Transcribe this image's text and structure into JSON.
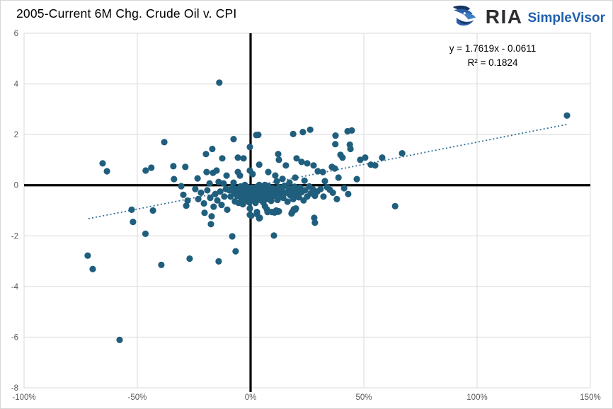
{
  "header": {
    "title": "2005-Current 6M Chg. Crude Oil v. CPI",
    "logo": {
      "brand": "RIA",
      "product": "SimpleVisor",
      "icon": "eagle-icon"
    }
  },
  "chart_data": {
    "type": "scatter",
    "title": "2005-Current 6M Chg. Crude Oil v. CPI",
    "xlabel": "",
    "ylabel": "",
    "xlim": [
      -100,
      150
    ],
    "ylim": [
      -8,
      6
    ],
    "grid": true,
    "x_ticks": [
      {
        "value": -100,
        "label": "-100%"
      },
      {
        "value": -50,
        "label": "-50%"
      },
      {
        "value": 0,
        "label": "0%"
      },
      {
        "value": 50,
        "label": "50%"
      },
      {
        "value": 100,
        "label": "100%"
      },
      {
        "value": 150,
        "label": "150%"
      }
    ],
    "y_ticks": [
      {
        "value": 6,
        "label": "6"
      },
      {
        "value": 4,
        "label": "4"
      },
      {
        "value": 2,
        "label": "2"
      },
      {
        "value": 0,
        "label": "0"
      },
      {
        "value": -2,
        "label": "-2"
      },
      {
        "value": -4,
        "label": "-4"
      },
      {
        "value": -6,
        "label": "-6"
      },
      {
        "value": -8,
        "label": "-8"
      }
    ],
    "annotation": {
      "equation": "y = 1.7619x - 0.0611",
      "r_squared": "R² = 0.1824"
    },
    "trendline": {
      "slope": 1.7619,
      "intercept": -0.0611,
      "x_start_pct": -71.6,
      "x_end_pct": 140,
      "style": "dotted"
    },
    "colors": {
      "point": "#205E7D",
      "trend": "#2F7196",
      "grid": "#D9D9D9",
      "border": "#D9D9D9",
      "zero_axis": "#000000",
      "tick_label": "#595959",
      "title": "#000000",
      "logo_brand": "#2B2D30",
      "logo_product": "#1F5FAD"
    },
    "point_radius": 4.6,
    "points": [
      [
        -65.3,
        0.86
      ],
      [
        -63.4,
        0.55
      ],
      [
        -71.9,
        -2.78
      ],
      [
        -69.7,
        -3.31
      ],
      [
        -57.8,
        -6.11
      ],
      [
        -52.5,
        -0.97
      ],
      [
        -51.9,
        -1.45
      ],
      [
        -46.4,
        -1.92
      ],
      [
        -43.1,
        -1.0
      ],
      [
        -39.4,
        -3.15
      ],
      [
        -26.9,
        -2.9
      ],
      [
        -38.1,
        1.7
      ],
      [
        -46.3,
        0.58
      ],
      [
        -43.8,
        0.69
      ],
      [
        -34.1,
        0.75
      ],
      [
        -28.8,
        0.72
      ],
      [
        -33.8,
        0.24
      ],
      [
        -30.6,
        -0.04
      ],
      [
        -29.7,
        -0.38
      ],
      [
        -27.8,
        -0.61
      ],
      [
        -28.4,
        -0.81
      ],
      [
        -14.1,
        -3.01
      ],
      [
        -6.6,
        -2.61
      ],
      [
        -8.1,
        -2.02
      ],
      [
        -13.8,
        4.05
      ],
      [
        -16.9,
        1.43
      ],
      [
        -7.5,
        1.82
      ],
      [
        -0.3,
        1.51
      ],
      [
        2.5,
        1.98
      ],
      [
        18.8,
        2.02
      ],
      [
        23.1,
        2.1
      ],
      [
        26.3,
        2.19
      ],
      [
        37.5,
        1.96
      ],
      [
        42.8,
        2.13
      ],
      [
        44.7,
        2.16
      ],
      [
        37.4,
        1.62
      ],
      [
        43.8,
        1.6
      ],
      [
        39.7,
        1.2
      ],
      [
        40.6,
        1.09
      ],
      [
        44.1,
        1.43
      ],
      [
        48.4,
        1.0
      ],
      [
        50.6,
        1.09
      ],
      [
        58.1,
        1.09
      ],
      [
        53.1,
        0.81
      ],
      [
        55.0,
        0.78
      ],
      [
        66.9,
        1.26
      ],
      [
        139.7,
        2.75
      ],
      [
        63.8,
        -0.83
      ],
      [
        28.4,
        -1.48
      ],
      [
        10.3,
        -1.99
      ],
      [
        19.7,
        -0.97
      ],
      [
        28.1,
        -1.29
      ],
      [
        -20.3,
        -1.09
      ],
      [
        -17.2,
        -1.23
      ],
      [
        -17.5,
        -1.54
      ],
      [
        -10.3,
        -0.97
      ],
      [
        -0.3,
        -1.17
      ],
      [
        2.8,
        -1.06
      ],
      [
        3.8,
        -1.31
      ],
      [
        7.5,
        -1.06
      ],
      [
        10.6,
        -1.08
      ],
      [
        12.2,
        -1.05
      ],
      [
        18.4,
        -1.06
      ],
      [
        -19.7,
        1.23
      ],
      [
        -12.5,
        1.06
      ],
      [
        -5.6,
        1.09
      ],
      [
        -3.1,
        1.06
      ],
      [
        12.2,
        1.23
      ],
      [
        12.5,
        1.0
      ],
      [
        3.4,
        1.99
      ],
      [
        3.8,
        0.81
      ],
      [
        15.6,
        0.78
      ],
      [
        20.3,
        1.06
      ],
      [
        22.5,
        0.92
      ],
      [
        25.0,
        0.86
      ],
      [
        27.8,
        0.78
      ],
      [
        29.7,
        0.55
      ],
      [
        31.9,
        0.52
      ],
      [
        35.9,
        0.72
      ],
      [
        37.2,
        0.66
      ],
      [
        38.8,
        0.3
      ],
      [
        32.8,
        0.16
      ],
      [
        46.9,
        0.24
      ],
      [
        35.0,
        -0.18
      ],
      [
        -19.4,
        0.52
      ],
      [
        -16.6,
        0.49
      ],
      [
        -15.0,
        0.58
      ],
      [
        -10.6,
        0.38
      ],
      [
        -5.6,
        0.52
      ],
      [
        -4.7,
        0.38
      ],
      [
        -0.3,
        0.58
      ],
      [
        0.9,
        0.44
      ],
      [
        7.8,
        0.52
      ],
      [
        10.9,
        0.38
      ],
      [
        -23.4,
        0.27
      ],
      [
        -18.1,
        0.07
      ],
      [
        -14.1,
        0.13
      ],
      [
        -11.9,
        0.07
      ],
      [
        -7.5,
        0.1
      ],
      [
        -2.5,
        0.01
      ],
      [
        1.6,
        -0.13
      ],
      [
        3.8,
        0.01
      ],
      [
        6.3,
        0.01
      ],
      [
        10.9,
        -0.18
      ],
      [
        -0.3,
        -0.92
      ],
      [
        0.3,
        -1.2
      ],
      [
        2.8,
        -1.14
      ],
      [
        6.3,
        -0.83
      ],
      [
        7.2,
        -0.95
      ],
      [
        9.4,
        -1.06
      ],
      [
        11.3,
        -1.0
      ],
      [
        12.5,
        -1.03
      ],
      [
        18.1,
        -1.12
      ],
      [
        19.1,
        -0.95
      ],
      [
        20.0,
        -0.92
      ],
      [
        4.1,
        -1.29
      ],
      [
        -9.4,
        -0.2
      ],
      [
        -8.8,
        -0.45
      ],
      [
        -8.1,
        -0.08
      ],
      [
        -7.2,
        -0.31
      ],
      [
        -6.9,
        -0.64
      ],
      [
        -6.3,
        -0.15
      ],
      [
        -5.9,
        -0.42
      ],
      [
        -5.3,
        -0.7
      ],
      [
        -5.0,
        -0.25
      ],
      [
        -4.4,
        -0.05
      ],
      [
        -4.1,
        -0.52
      ],
      [
        -3.8,
        -0.33
      ],
      [
        -3.4,
        -0.75
      ],
      [
        -2.8,
        -0.17
      ],
      [
        -2.2,
        -0.48
      ],
      [
        -1.9,
        -0.62
      ],
      [
        -1.6,
        -0.28
      ],
      [
        -1.3,
        -0.08
      ],
      [
        -0.9,
        -0.4
      ],
      [
        -0.6,
        -0.68
      ],
      [
        0.0,
        -0.22
      ],
      [
        0.3,
        -0.5
      ],
      [
        0.6,
        -0.1
      ],
      [
        0.9,
        -0.33
      ],
      [
        1.3,
        -0.6
      ],
      [
        1.6,
        -0.18
      ],
      [
        1.9,
        -0.44
      ],
      [
        2.2,
        -0.7
      ],
      [
        2.5,
        -0.27
      ],
      [
        2.8,
        -0.06
      ],
      [
        3.1,
        -0.52
      ],
      [
        3.4,
        -0.36
      ],
      [
        3.8,
        -0.14
      ],
      [
        4.4,
        -0.58
      ],
      [
        4.7,
        -0.3
      ],
      [
        5.0,
        -0.08
      ],
      [
        5.3,
        -0.47
      ],
      [
        5.6,
        -0.68
      ],
      [
        5.9,
        -0.21
      ],
      [
        6.3,
        -0.41
      ],
      [
        6.9,
        -0.12
      ],
      [
        7.2,
        -0.55
      ],
      [
        7.5,
        -0.29
      ],
      [
        7.8,
        -0.03
      ],
      [
        8.4,
        -0.47
      ],
      [
        8.8,
        -0.22
      ],
      [
        9.1,
        -0.62
      ],
      [
        9.7,
        -0.35
      ],
      [
        10.0,
        -0.12
      ],
      [
        10.6,
        -0.42
      ],
      [
        11.3,
        -0.25
      ],
      [
        11.9,
        -0.58
      ],
      [
        12.5,
        -0.08
      ],
      [
        13.1,
        -0.36
      ],
      [
        13.8,
        -0.18
      ],
      [
        14.4,
        -0.5
      ],
      [
        15.0,
        -0.02
      ],
      [
        15.6,
        -0.3
      ],
      [
        16.3,
        -0.65
      ],
      [
        16.9,
        -0.15
      ],
      [
        17.5,
        -0.4
      ],
      [
        18.1,
        -0.24
      ],
      [
        18.8,
        -0.55
      ],
      [
        19.4,
        -0.06
      ],
      [
        20.0,
        -0.35
      ],
      [
        20.6,
        -0.18
      ],
      [
        21.3,
        -0.48
      ],
      [
        21.9,
        -0.1
      ],
      [
        22.5,
        -0.28
      ],
      [
        23.4,
        -0.6
      ],
      [
        24.1,
        -0.2
      ],
      [
        25.0,
        -0.45
      ],
      [
        25.9,
        -0.05
      ],
      [
        26.6,
        -0.32
      ],
      [
        27.5,
        -0.16
      ],
      [
        28.4,
        -0.42
      ],
      [
        29.4,
        -0.25
      ],
      [
        -24.4,
        -0.15
      ],
      [
        -23.1,
        -0.55
      ],
      [
        -21.9,
        -0.3
      ],
      [
        -20.6,
        -0.72
      ],
      [
        -19.1,
        -0.2
      ],
      [
        -17.8,
        -0.5
      ],
      [
        -16.3,
        -0.85
      ],
      [
        -15.6,
        -0.35
      ],
      [
        -14.7,
        -0.6
      ],
      [
        -13.4,
        -0.25
      ],
      [
        -12.8,
        -0.78
      ],
      [
        -11.6,
        -0.45
      ],
      [
        -10.9,
        -0.15
      ],
      [
        11.6,
        0.15
      ],
      [
        14.1,
        0.25
      ],
      [
        17.2,
        0.1
      ],
      [
        19.7,
        0.3
      ],
      [
        23.8,
        0.18
      ],
      [
        30.9,
        -0.15
      ],
      [
        32.2,
        -0.45
      ],
      [
        33.8,
        -0.08
      ],
      [
        36.3,
        -0.3
      ],
      [
        38.1,
        -0.55
      ],
      [
        41.3,
        -0.12
      ],
      [
        43.1,
        -0.35
      ]
    ]
  }
}
